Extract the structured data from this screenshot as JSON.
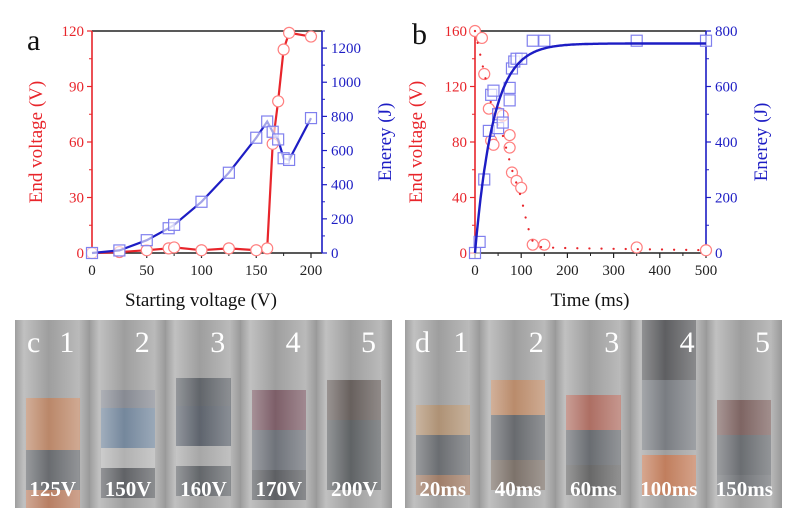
{
  "figure": {
    "panels": {
      "a": {
        "letter": "a"
      },
      "b": {
        "letter": "b"
      },
      "c": {
        "letter": "c",
        "tubes": [
          {
            "number": "1",
            "caption": "125V"
          },
          {
            "number": "2",
            "caption": "150V"
          },
          {
            "number": "3",
            "caption": "160V"
          },
          {
            "number": "4",
            "caption": "170V"
          },
          {
            "number": "5",
            "caption": "200V"
          }
        ]
      },
      "d": {
        "letter": "d",
        "tubes": [
          {
            "number": "1",
            "caption": "20ms"
          },
          {
            "number": "2",
            "caption": "40ms"
          },
          {
            "number": "3",
            "caption": "60ms"
          },
          {
            "number": "4",
            "caption": "100ms"
          },
          {
            "number": "5",
            "caption": "150ms"
          }
        ]
      }
    },
    "colors": {
      "red": "#e8252b",
      "blue": "#1d1dc4",
      "blue_marker": "#8080ee",
      "red_marker": "#ff8080",
      "black": "#111111"
    }
  },
  "chart_data": [
    {
      "panel": "a",
      "type": "line",
      "xlabel": "Starting voltage (V)",
      "ylabel_left": "End voltage (V)",
      "ylabel_right": "Enerey (J)",
      "xlim": [
        0,
        200
      ],
      "xticks": [
        0,
        50,
        100,
        150,
        200
      ],
      "ylim_left": [
        0,
        120
      ],
      "yticks_left": [
        0,
        30,
        60,
        90,
        120
      ],
      "ylim_right": [
        0,
        1300
      ],
      "yticks_right": [
        0,
        200,
        400,
        600,
        800,
        1000,
        1200
      ],
      "grid": false,
      "series": [
        {
          "name": "End voltage",
          "axis": "left",
          "marker": "circle",
          "style": "solid",
          "x": [
            0,
            25,
            50,
            70,
            75,
            100,
            125,
            150,
            160,
            165,
            170,
            175,
            180,
            200
          ],
          "y": [
            0,
            0.5,
            1.5,
            2.5,
            3,
            1.5,
            2.5,
            1.5,
            2.5,
            59,
            82,
            110,
            119,
            117
          ]
        },
        {
          "name": "Energy",
          "axis": "right",
          "marker": "square",
          "style": "solid",
          "x": [
            0,
            25,
            50,
            70,
            75,
            100,
            125,
            150,
            160,
            165,
            170,
            175,
            180,
            200
          ],
          "y": [
            0,
            15,
            75,
            145,
            165,
            300,
            470,
            675,
            770,
            710,
            665,
            555,
            545,
            790
          ]
        }
      ]
    },
    {
      "panel": "b",
      "type": "scatter",
      "xlabel": "Time (ms)",
      "ylabel_left": "End voltage (V)",
      "ylabel_right": "Enerey (J)",
      "xlim": [
        0,
        500
      ],
      "xticks": [
        0,
        100,
        200,
        300,
        400,
        500
      ],
      "ylim_left": [
        0,
        160
      ],
      "yticks_left": [
        0,
        40,
        80,
        120,
        160
      ],
      "ylim_right": [
        0,
        800
      ],
      "yticks_right": [
        0,
        200,
        400,
        600,
        800
      ],
      "grid": false,
      "series": [
        {
          "name": "End voltage",
          "axis": "left",
          "marker": "circle",
          "x": [
            0,
            15,
            20,
            30,
            35,
            40,
            50,
            60,
            75,
            75,
            80,
            90,
            100,
            125,
            150,
            350,
            500
          ],
          "y": [
            160,
            155,
            129,
            104,
            81,
            78,
            101,
            99,
            85,
            76,
            58,
            52,
            47,
            6,
            6,
            4,
            2
          ]
        },
        {
          "name": "End voltage fit",
          "axis": "left",
          "style": "dotted",
          "x": [
            0,
            20,
            40,
            60,
            80,
            100,
            110,
            120,
            130,
            150,
            200,
            300,
            400,
            500
          ],
          "y": [
            160,
            130,
            100,
            85,
            60,
            40,
            25,
            12,
            5,
            4,
            3.5,
            3,
            2.5,
            2
          ]
        },
        {
          "name": "Energy",
          "axis": "right",
          "marker": "square",
          "x": [
            0,
            10,
            20,
            30,
            35,
            40,
            50,
            50,
            60,
            75,
            75,
            80,
            85,
            90,
            100,
            125,
            150,
            350,
            500
          ],
          "y": [
            0,
            40,
            265,
            440,
            570,
            585,
            450,
            500,
            470,
            595,
            550,
            665,
            690,
            700,
            700,
            765,
            765,
            765,
            765
          ]
        },
        {
          "name": "Energy fit",
          "axis": "right",
          "style": "solid",
          "model": "755*(1-exp(-t/40))"
        }
      ]
    }
  ]
}
